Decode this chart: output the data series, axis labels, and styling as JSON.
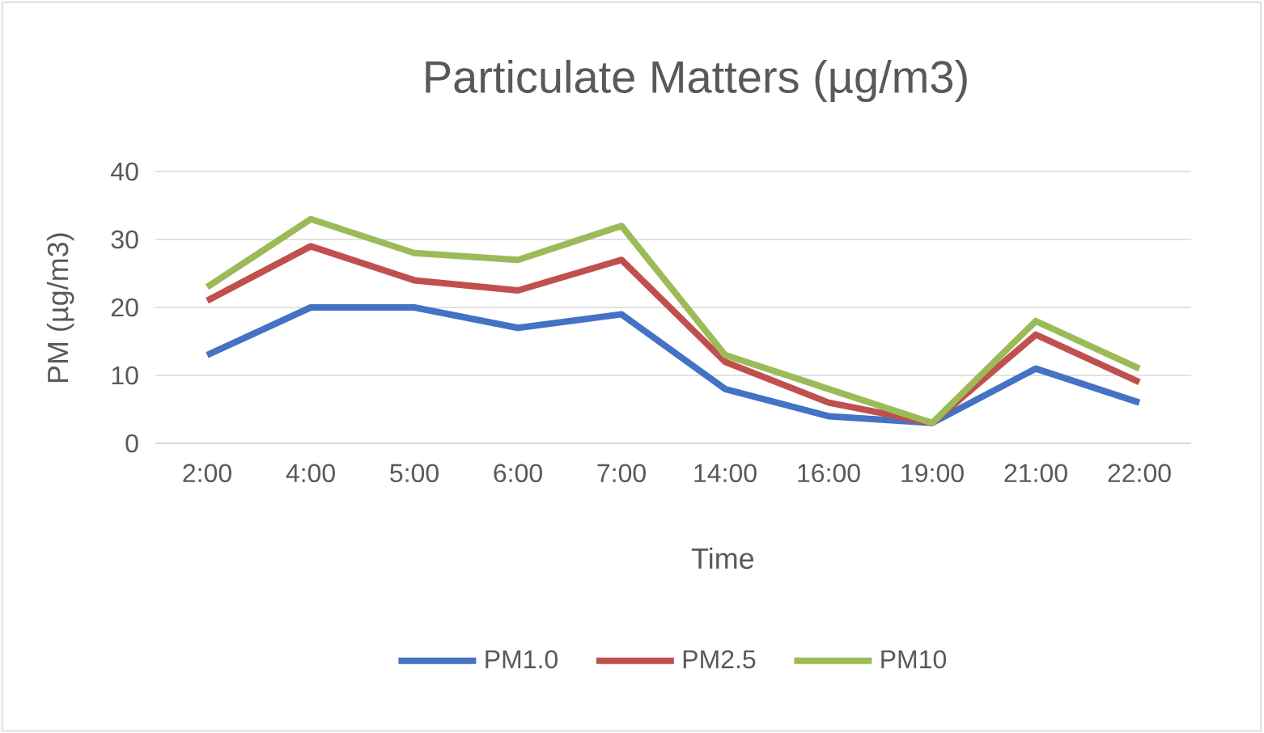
{
  "chart_data": {
    "type": "line",
    "title": "Particulate Matters (µg/m3)",
    "xlabel": "Time",
    "ylabel": "PM (µg/m3)",
    "categories": [
      "2:00",
      "4:00",
      "5:00",
      "6:00",
      "7:00",
      "14:00",
      "16:00",
      "19:00",
      "21:00",
      "22:00"
    ],
    "series": [
      {
        "name": "PM1.0",
        "color": "#4472c4",
        "values": [
          13,
          20,
          20,
          17,
          19,
          8,
          4,
          3,
          11,
          6
        ]
      },
      {
        "name": "PM2.5",
        "color": "#c0504d",
        "values": [
          21,
          29,
          24,
          22.5,
          27,
          12,
          6,
          3,
          16,
          9
        ]
      },
      {
        "name": "PM10",
        "color": "#9bbb59",
        "values": [
          23,
          33,
          28,
          27,
          32,
          13,
          8,
          3,
          18,
          11
        ]
      }
    ],
    "ylim": [
      0,
      40
    ],
    "yticks": [
      0,
      10,
      20,
      30,
      40
    ],
    "grid": "y",
    "legend": "bottom",
    "marker": "none",
    "line_style": "solid"
  }
}
